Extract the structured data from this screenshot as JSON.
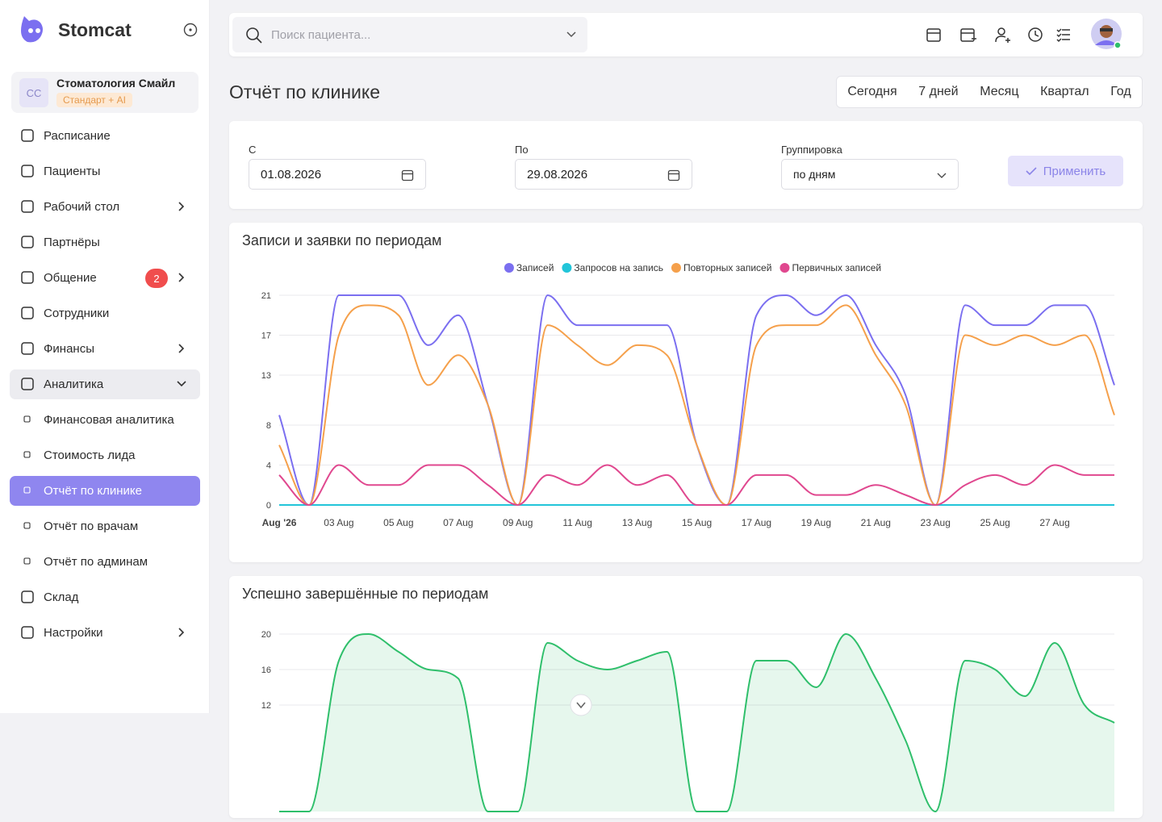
{
  "sidebar": {
    "brand": "Stomcat",
    "clinic": {
      "initials": "СС",
      "name": "Стоматология Смайл",
      "plan": "Стандарт + AI"
    },
    "nav": [
      {
        "label": "Расписание"
      },
      {
        "label": "Пациенты"
      },
      {
        "label": "Рабочий стол",
        "expandable": true
      },
      {
        "label": "Партнёры"
      },
      {
        "label": "Общение",
        "badge": 2,
        "expandable": true
      },
      {
        "label": "Сотрудники"
      },
      {
        "label": "Финансы",
        "expandable": true
      },
      {
        "label": "Аналитика",
        "expanded": true,
        "children": [
          {
            "label": "Финансовая аналитика"
          },
          {
            "label": "Стоимость лида"
          },
          {
            "label": "Отчёт по клинике",
            "active": true
          },
          {
            "label": "Отчёт по врачам"
          },
          {
            "label": "Отчёт по админам"
          }
        ]
      },
      {
        "label": "Склад"
      },
      {
        "label": "Настройки",
        "expandable": true
      }
    ]
  },
  "header": {
    "search_placeholder": "Поиск пациента..."
  },
  "page": {
    "title": "Отчёт по клинике",
    "periods": [
      "Сегодня",
      "7 дней",
      "Месяц",
      "Квартал",
      "Год"
    ]
  },
  "filters": {
    "from_label": "С",
    "from": "01.08.2026",
    "to_label": "По",
    "to": "29.08.2026",
    "group_label": "Группировка",
    "group": "по дням",
    "apply": "Применить"
  },
  "chart_data": [
    {
      "type": "line",
      "title": "Записи и заявки по периодам",
      "categories": [
        "Aug '26",
        null,
        "03 Aug",
        null,
        "05 Aug",
        null,
        "07 Aug",
        null,
        "09 Aug",
        null,
        "11 Aug",
        null,
        "13 Aug",
        null,
        "15 Aug",
        null,
        "17 Aug",
        null,
        "19 Aug",
        null,
        "21 Aug",
        null,
        "23 Aug",
        null,
        "25 Aug",
        null,
        "27 Aug",
        null,
        null
      ],
      "series": [
        {
          "name": "Записей",
          "color": "#7b6ff0",
          "values": [
            9,
            0,
            21,
            21,
            21,
            16,
            19,
            10,
            0,
            21,
            18,
            18,
            18,
            18,
            6,
            0,
            19,
            21,
            19,
            21,
            16,
            11,
            0,
            20,
            18,
            18,
            20,
            20,
            12
          ]
        },
        {
          "name": "Запросов на запись",
          "color": "#22c5d9",
          "values": [
            0,
            0,
            0,
            0,
            0,
            0,
            0,
            0,
            0,
            0,
            0,
            0,
            0,
            0,
            0,
            0,
            0,
            0,
            0,
            0,
            0,
            0,
            0,
            0,
            0,
            0,
            0,
            0,
            0
          ]
        },
        {
          "name": "Повторных записей",
          "color": "#f5a04b",
          "values": [
            6,
            0,
            17,
            20,
            19,
            12,
            15,
            10,
            0,
            18,
            16,
            14,
            16,
            15,
            6,
            0,
            16,
            18,
            18,
            20,
            15,
            10,
            0,
            17,
            16,
            17,
            16,
            17,
            9
          ]
        },
        {
          "name": "Первичных записей",
          "color": "#e0488f",
          "values": [
            3,
            0,
            4,
            2,
            2,
            4,
            4,
            2,
            0,
            3,
            2,
            4,
            2,
            3,
            0,
            0,
            3,
            3,
            1,
            1,
            2,
            1,
            0,
            2,
            3,
            2,
            4,
            3,
            3
          ]
        }
      ],
      "ylim": [
        0,
        21
      ],
      "yticks": [
        0,
        4,
        8,
        13,
        17,
        21
      ],
      "grid": true,
      "legend": "top"
    },
    {
      "type": "area",
      "title": "Успешно завершённые по периодам",
      "series": [
        {
          "color": "#2fbf6b",
          "values": [
            0,
            0,
            17,
            20,
            18,
            16,
            15,
            0,
            0,
            19,
            17,
            16,
            17,
            18,
            0,
            0,
            17,
            17,
            14,
            20,
            15,
            8,
            0,
            17,
            16,
            13,
            19,
            12,
            10
          ]
        }
      ],
      "ylim": [
        0,
        21
      ],
      "yticks": [
        12,
        16,
        20
      ],
      "grid": true
    }
  ]
}
